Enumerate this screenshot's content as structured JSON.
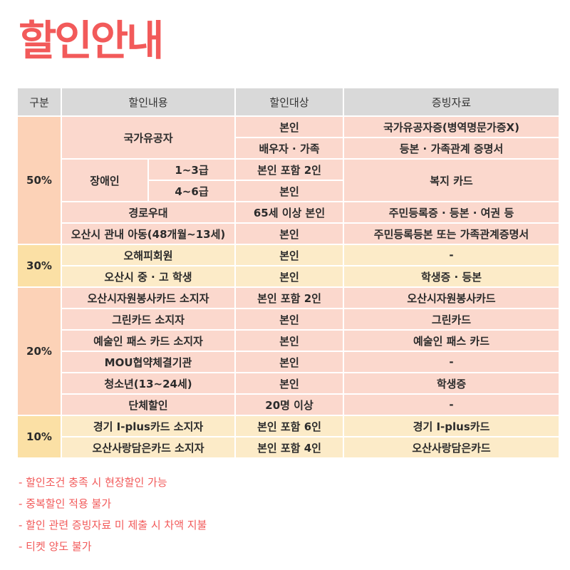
{
  "title": "할인안내",
  "headers": [
    "구분",
    "할인내용",
    "할인대상",
    "증빙자료"
  ],
  "rates": [
    "50%",
    "30%",
    "20%",
    "10%"
  ],
  "rows": {
    "r1": {
      "content": "국가유공자",
      "target": "본인",
      "proof": "국가유공자증(병역명문가증X)"
    },
    "r2": {
      "target": "배우자 · 가족",
      "proof": "등본 · 가족관계 증명서"
    },
    "r3": {
      "content": "장애인",
      "grade": "1~3급",
      "target": "본인 포함 2인",
      "proof": "복지 카드"
    },
    "r4": {
      "grade": "4~6급",
      "target": "본인"
    },
    "r5": {
      "content": "경로우대",
      "target": "65세 이상 본인",
      "proof": "주민등록증 · 등본 · 여권 등"
    },
    "r6": {
      "content": "오산시 관내 아동(48개월~13세)",
      "target": "본인",
      "proof": "주민등록등본 또는 가족관계증명서"
    },
    "r7": {
      "content": "오해피회원",
      "target": "본인",
      "proof": "-"
    },
    "r8": {
      "content": "오산시 중 · 고 학생",
      "target": "본인",
      "proof": "학생증 · 등본"
    },
    "r9": {
      "content": "오산시자원봉사카드 소지자",
      "target": "본인 포함 2인",
      "proof": "오산시자원봉사카드"
    },
    "r10": {
      "content": "그린카드 소지자",
      "target": "본인",
      "proof": "그린카드"
    },
    "r11": {
      "content": "예술인 패스 카드 소지자",
      "target": "본인",
      "proof": "예술인 패스 카드"
    },
    "r12": {
      "content": "MOU협약체결기관",
      "target": "본인",
      "proof": "-"
    },
    "r13": {
      "content": "청소년(13~24세)",
      "target": "본인",
      "proof": "학생증"
    },
    "r14": {
      "content": "단체할인",
      "target": "20명 이상",
      "proof": "-"
    },
    "r15": {
      "content": "경기 I-plus카드 소지자",
      "target": "본인 포함 6인",
      "proof": "경기 I-plus카드"
    },
    "r16": {
      "content": "오산사랑담은카드 소지자",
      "target": "본인 포함 4인",
      "proof": "오산사랑담은카드"
    }
  },
  "notes": [
    "- 할인조건 충족 시 현장할인 가능",
    "- 중복할인 적용 불가",
    "- 할인 관련 증빙자료 미 제출 시 차액 지불",
    "- 티켓 양도 불가"
  ],
  "colors": {
    "accent": "#f25a5a",
    "header": "#d9d9d9",
    "salmon": "#fbd8cd",
    "cream": "#fcebc8"
  }
}
